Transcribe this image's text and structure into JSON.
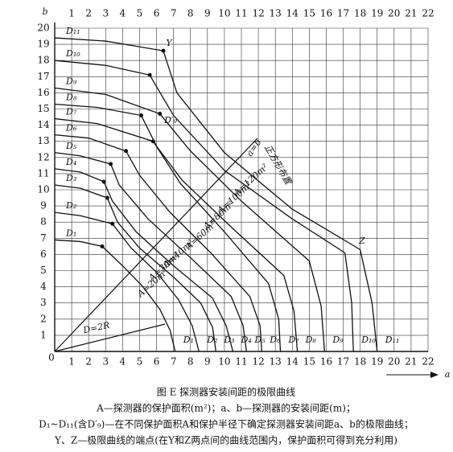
{
  "chart_data": {
    "type": "line",
    "xlabel": "a",
    "ylabel": "b",
    "xlim": [
      0,
      22
    ],
    "ylim": [
      0,
      20
    ],
    "xticks": [
      0,
      1,
      2,
      3,
      4,
      5,
      6,
      7,
      8,
      9,
      10,
      11,
      12,
      13,
      14,
      15,
      16,
      17,
      18,
      19,
      20,
      21,
      22
    ],
    "yticks": [
      0,
      1,
      2,
      3,
      4,
      5,
      6,
      7,
      8,
      9,
      10,
      11,
      12,
      13,
      14,
      15,
      16,
      17,
      18,
      19,
      20
    ],
    "grid": true,
    "series": [
      {
        "name": "D₁",
        "color": "#111",
        "x": [
          0,
          1.5,
          2.8,
          4,
          5.2,
          6.2,
          6.8,
          7.1
        ],
        "values": [
          6.9,
          6.8,
          6.5,
          5.3,
          4,
          2.6,
          1.3,
          0
        ]
      },
      {
        "name": "D₂",
        "color": "#111",
        "x": [
          0,
          1.5,
          3.4,
          4.5,
          6,
          7.3,
          8.1,
          8.5
        ],
        "values": [
          8.6,
          8.4,
          7.9,
          6.4,
          4.9,
          3.2,
          1.6,
          0
        ]
      },
      {
        "name": "D₃",
        "color": "#111",
        "x": [
          0,
          1.5,
          3.1,
          3.7,
          5,
          7,
          8.6,
          9.3,
          9.5
        ],
        "values": [
          10.3,
          10.1,
          9.5,
          8,
          6.4,
          4.6,
          3,
          1.5,
          0
        ]
      },
      {
        "name": "D₄",
        "color": "#111",
        "x": [
          0,
          1.5,
          2.9,
          3.4,
          4.8,
          7,
          9.3,
          10.1,
          10.5
        ],
        "values": [
          11.3,
          11.1,
          10.5,
          9.3,
          7.4,
          5.3,
          3.3,
          1.6,
          0
        ]
      },
      {
        "name": "D₅",
        "color": "#111",
        "x": [
          0,
          1.5,
          3.3,
          3.8,
          5.5,
          8,
          10.4,
          11.1,
          11.3
        ],
        "values": [
          12.3,
          12.1,
          11.6,
          10.3,
          8.2,
          5.8,
          3.4,
          1.6,
          0
        ]
      },
      {
        "name": "D₆",
        "color": "#111",
        "x": [
          0,
          2,
          4.2,
          5,
          6.8,
          9.2,
          11.5,
          12.1,
          12.2
        ],
        "values": [
          13.4,
          13.2,
          12.4,
          10.9,
          8.6,
          6.1,
          3.4,
          1.6,
          0
        ]
      },
      {
        "name": "D₇",
        "color": "#111",
        "x": [
          0,
          2.5,
          5.8,
          7.4,
          10,
          12.6,
          13.2,
          13.3
        ],
        "values": [
          14.4,
          14.1,
          13,
          10.4,
          7.4,
          4.2,
          2,
          0
        ]
      },
      {
        "name": "D₈",
        "color": "#111",
        "x": [
          0,
          2.5,
          5.1,
          6,
          7.5,
          10.5,
          13.5,
          14.1,
          14.3
        ],
        "values": [
          15.3,
          15.1,
          14.6,
          12.7,
          10.6,
          7.6,
          4.7,
          2.5,
          0
        ]
      },
      {
        "name": "D₉",
        "color": "#111",
        "x": [
          0,
          3,
          6.2,
          8,
          11,
          15,
          15.7,
          15.9
        ],
        "values": [
          16.3,
          15.9,
          14.7,
          12.4,
          9.3,
          5.6,
          2.8,
          0
        ]
      },
      {
        "name": "D₁₀",
        "color": "#111",
        "x": [
          0,
          3,
          5.6,
          7,
          10,
          14,
          17.1,
          17.5,
          17.6
        ],
        "values": [
          18,
          17.7,
          17.1,
          14.6,
          11.2,
          8.2,
          6.1,
          3,
          0
        ]
      },
      {
        "name": "D₁₁",
        "color": "#111",
        "x": [
          0,
          3,
          6.4,
          7.2,
          10,
          14,
          18,
          18.7,
          19
        ],
        "values": [
          19.4,
          19.2,
          18.6,
          16,
          12.3,
          8.8,
          6.3,
          3,
          0
        ]
      }
    ],
    "annotations": [
      "A=20m²",
      "A=30m²",
      "A=40m²",
      "A=60m²",
      "A=80m²",
      "A=100m²",
      "A=120m²",
      "a=b",
      "正方形布置",
      "D=2R",
      "Y",
      "Z",
      "D′₉"
    ],
    "caption": [
      "图 E  探测器安装间距的极限曲线",
      "A—探测器的保护面积(m²)；a、b—探测器的安装间距(m)；",
      "D₁~D₁₁(含D′₉)—在不同保护面积A和保护半径下确定探测器安装间距a、b的极限曲线；",
      "Y、Z—极限曲线的端点(在Y和Z两点间的曲线范围内，保护面积可得到充分利用)"
    ]
  }
}
